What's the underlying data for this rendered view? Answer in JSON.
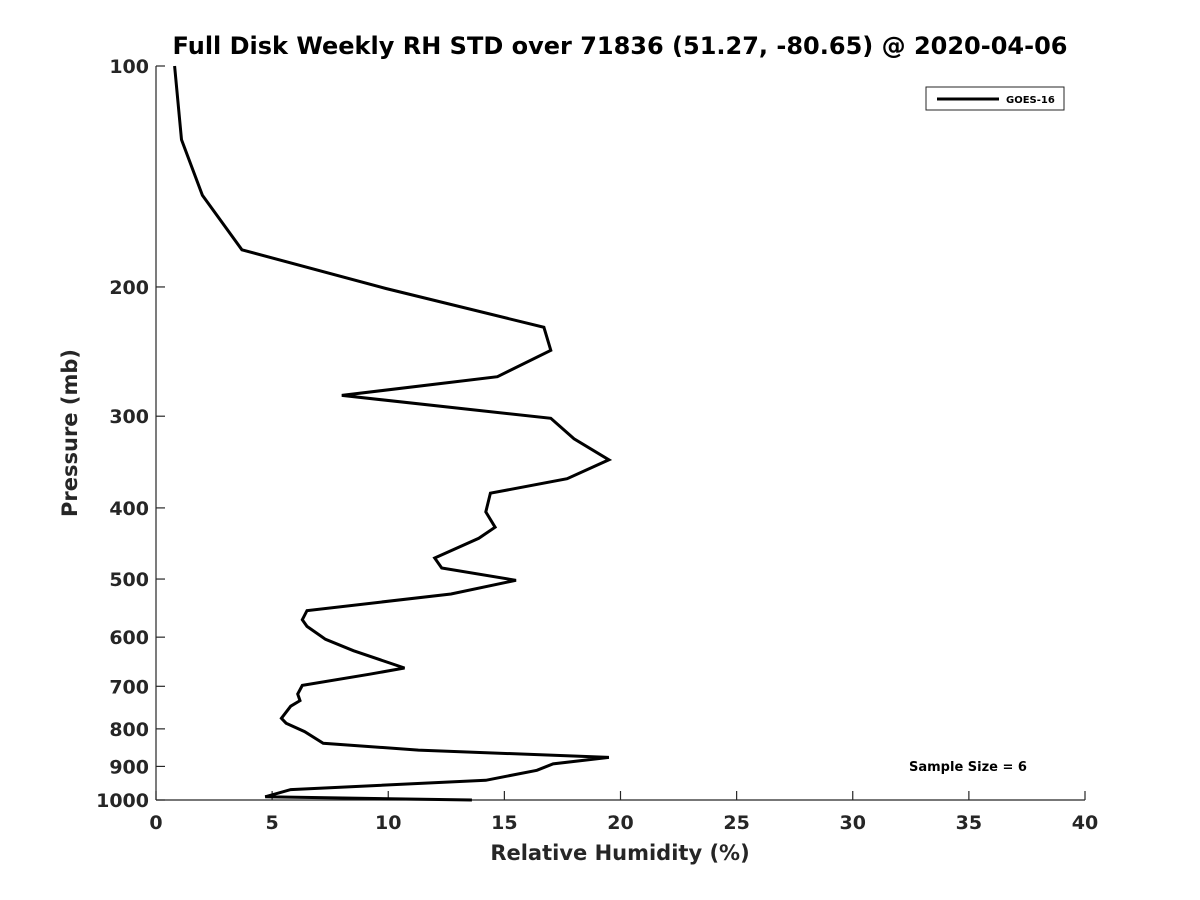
{
  "chart_data": {
    "type": "line",
    "title": "Full Disk Weekly RH STD over 71836 (51.27, -80.65) @ 2020-04-06",
    "xlabel": "Relative Humidity (%)",
    "ylabel": "Pressure (mb)",
    "xlim": [
      0,
      40
    ],
    "ylim": [
      100,
      1000
    ],
    "y_scale": "log",
    "y_reversed": true,
    "x_ticks": [
      0,
      5,
      10,
      15,
      20,
      25,
      30,
      35,
      40
    ],
    "y_ticks": [
      100,
      200,
      300,
      400,
      500,
      600,
      700,
      800,
      900,
      1000
    ],
    "grid": false,
    "legend_position": "top-right",
    "series": [
      {
        "name": "GOES-16",
        "color": "#000000",
        "points": [
          [
            0.8,
            100
          ],
          [
            1.1,
            126
          ],
          [
            2.0,
            150
          ],
          [
            3.7,
            178
          ],
          [
            9.9,
            201
          ],
          [
            16.7,
            227
          ],
          [
            17.0,
            244
          ],
          [
            14.7,
            265
          ],
          [
            8.0,
            281
          ],
          [
            17.0,
            302
          ],
          [
            18.0,
            322
          ],
          [
            19.5,
            344
          ],
          [
            17.7,
            365
          ],
          [
            14.4,
            382
          ],
          [
            14.2,
            405
          ],
          [
            14.6,
            425
          ],
          [
            13.9,
            440
          ],
          [
            12.0,
            468
          ],
          [
            12.3,
            483
          ],
          [
            15.5,
            502
          ],
          [
            12.7,
            524
          ],
          [
            6.5,
            552
          ],
          [
            6.3,
            568
          ],
          [
            6.5,
            580
          ],
          [
            7.3,
            604
          ],
          [
            8.5,
            626
          ],
          [
            10.7,
            661
          ],
          [
            9.2,
            674
          ],
          [
            6.3,
            698
          ],
          [
            6.1,
            717
          ],
          [
            6.2,
            732
          ],
          [
            5.8,
            745
          ],
          [
            5.4,
            774
          ],
          [
            5.6,
            786
          ],
          [
            6.4,
            807
          ],
          [
            7.2,
            837
          ],
          [
            11.3,
            855
          ],
          [
            19.5,
            875
          ],
          [
            17.1,
            893
          ],
          [
            16.4,
            911
          ],
          [
            14.2,
            940
          ],
          [
            5.8,
            968
          ],
          [
            4.7,
            990
          ],
          [
            13.6,
            1000
          ]
        ]
      }
    ],
    "annotation": "Sample Size = 6"
  }
}
